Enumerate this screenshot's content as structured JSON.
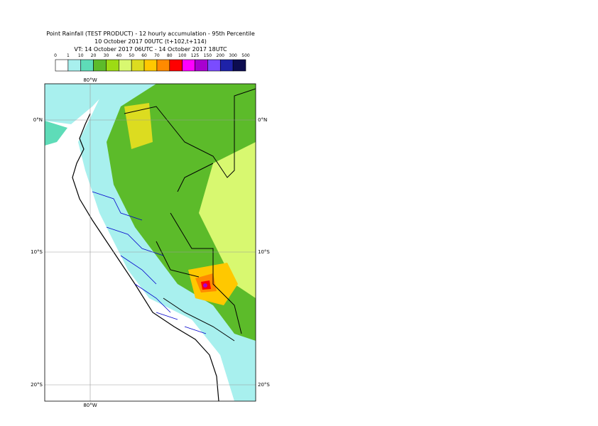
{
  "title": [
    "Point Rainfall (TEST PRODUCT) - 12 hourly accumulation - 95th Percentile",
    "10 October 2017 00UTC (t+102,t+114)",
    "VT: 14 October 2017 06UTC - 14 October 2017 18UTC"
  ],
  "legend": {
    "labels": [
      0,
      1,
      10,
      20,
      30,
      40,
      50,
      60,
      70,
      80,
      100,
      125,
      150,
      200,
      300,
      500
    ],
    "colors": [
      "#ffffff",
      "#a8f0ee",
      "#5edcb8",
      "#5cbb2a",
      "#9ddb14",
      "#d8f870",
      "#dcdc20",
      "#ffc800",
      "#ff8a00",
      "#ff0000",
      "#ff00ff",
      "#a800d0",
      "#7a4cff",
      "#1e22a8",
      "#0c0c50"
    ]
  },
  "map": {
    "longitude_labels": [
      "80°W"
    ],
    "latitude_labels": [
      "0°N",
      "10°S",
      "20°S"
    ]
  }
}
